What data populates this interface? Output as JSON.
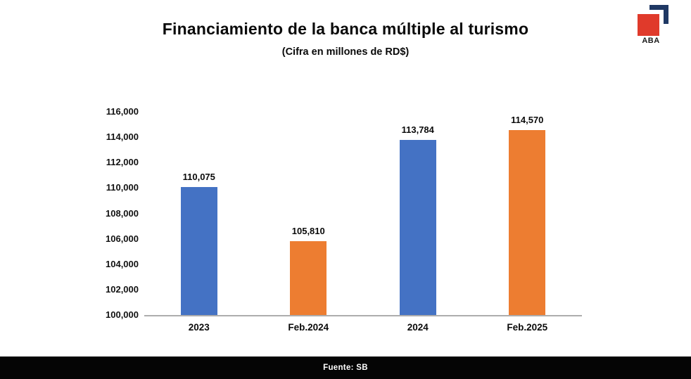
{
  "header": {
    "title": "Financiamiento de la banca múltiple al turismo",
    "subtitle": "(Cifra en millones de RD$)"
  },
  "logo": {
    "label": "ABA",
    "red": "#E03A2B",
    "navy": "#1F3864"
  },
  "footer": {
    "source_label": "Fuente: SB"
  },
  "chart_data": {
    "type": "bar",
    "title": "Financiamiento de la banca múltiple al turismo",
    "subtitle": "(Cifra en millones de RD$)",
    "categories": [
      "2023",
      "Feb.2024",
      "2024",
      "Feb.2025"
    ],
    "values": [
      110075,
      105810,
      113784,
      114570
    ],
    "value_labels": [
      "110,075",
      "105,810",
      "113,784",
      "114,570"
    ],
    "bar_colors": [
      "#4472C4",
      "#ED7D31",
      "#4472C4",
      "#ED7D31"
    ],
    "ylim": [
      100000,
      116000
    ],
    "ytick_step": 2000,
    "ytick_labels": [
      "116,000",
      "114,000",
      "112,000",
      "110,000",
      "108,000",
      "106,000",
      "104,000",
      "102,000",
      "100,000"
    ],
    "xlabel": "",
    "ylabel": "",
    "grid": false,
    "legend": false,
    "baseline_color": "#ADADAD"
  }
}
